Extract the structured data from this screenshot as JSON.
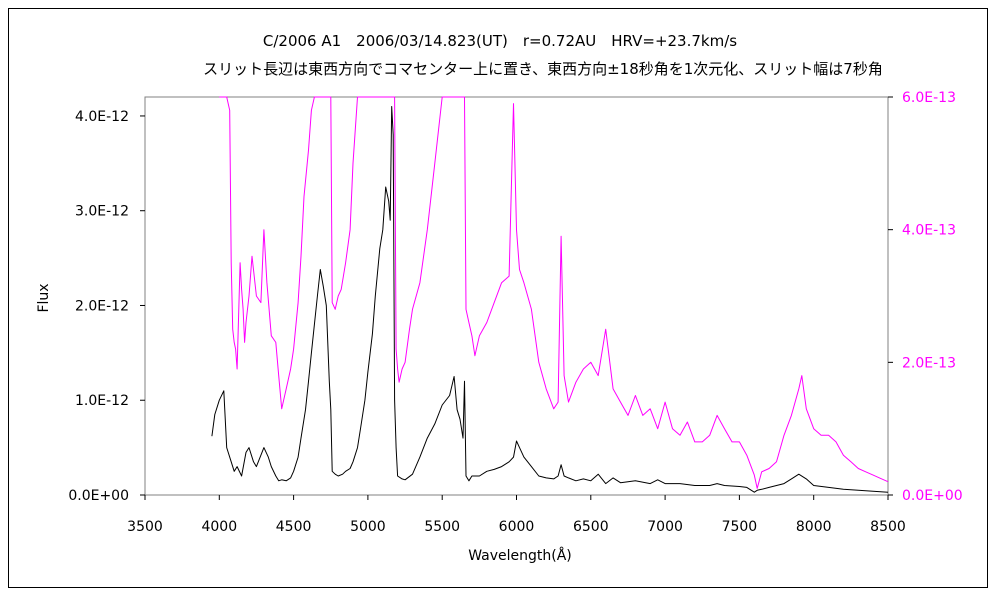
{
  "chart_data": {
    "type": "line",
    "title": "C/2006 A1　2006/03/14.823(UT)　r=0.72AU　HRV=+23.7km/s",
    "subtitle": "スリット長辺は東西方向でコマセンター上に置き、東西方向±18秒角を1次元化、スリット幅は7秒角",
    "xlabel": "Wavelength(Å)",
    "ylabel": "Flux",
    "xlim": [
      3500,
      8500
    ],
    "ylim": [
      0,
      4.2e-12
    ],
    "y2lim": [
      0,
      6e-13
    ],
    "x_ticks": [
      "3500",
      "4000",
      "4500",
      "5000",
      "5500",
      "6000",
      "6500",
      "7000",
      "7500",
      "8000",
      "8500"
    ],
    "y_ticks": [
      "0.0E+00",
      "1.0E-12",
      "2.0E-12",
      "3.0E-12",
      "4.0E-12"
    ],
    "y2_ticks": [
      "0.0E+00",
      "2.0E-13",
      "4.0E-13",
      "6.0E-13"
    ],
    "grid": false,
    "colors": {
      "primary": "#000000",
      "secondary": "#ff00ff"
    },
    "series": [
      {
        "axis": "left",
        "x": [
          3950,
          3970,
          4000,
          4030,
          4050,
          4080,
          4100,
          4120,
          4150,
          4180,
          4200,
          4230,
          4250,
          4280,
          4300,
          4330,
          4350,
          4380,
          4400,
          4420,
          4450,
          4480,
          4500,
          4530,
          4550,
          4580,
          4600,
          4620,
          4640,
          4660,
          4680,
          4700,
          4720,
          4740,
          4750,
          4760,
          4780,
          4800,
          4830,
          4850,
          4880,
          4900,
          4930,
          4950,
          4980,
          5000,
          5030,
          5050,
          5080,
          5100,
          5120,
          5140,
          5150,
          5160,
          5170,
          5180,
          5190,
          5200,
          5230,
          5250,
          5300,
          5350,
          5400,
          5450,
          5500,
          5550,
          5580,
          5600,
          5620,
          5640,
          5650,
          5660,
          5680,
          5700,
          5750,
          5800,
          5850,
          5900,
          5950,
          5980,
          6000,
          6020,
          6050,
          6100,
          6150,
          6200,
          6250,
          6280,
          6300,
          6320,
          6350,
          6400,
          6450,
          6500,
          6550,
          6600,
          6650,
          6700,
          6800,
          6900,
          6950,
          7000,
          7100,
          7200,
          7300,
          7350,
          7400,
          7500,
          7550,
          7600,
          7620,
          7650,
          7700,
          7800,
          7850,
          7900,
          7950,
          8000,
          8100,
          8200,
          8300,
          8400,
          8500
        ],
        "y": [
          6.2e-13,
          8.5e-13,
          1e-12,
          1.1e-12,
          5e-13,
          3.5e-13,
          2.5e-13,
          3e-13,
          2e-13,
          4.5e-13,
          5e-13,
          3.5e-13,
          3e-13,
          4.2e-13,
          5e-13,
          4e-13,
          3e-13,
          2e-13,
          1.5e-13,
          1.6e-13,
          1.5e-13,
          1.8e-13,
          2.5e-13,
          4e-13,
          6e-13,
          9e-13,
          1.2e-12,
          1.5e-12,
          1.8e-12,
          2.1e-12,
          2.38e-12,
          2.2e-12,
          2e-12,
          1.2e-12,
          9e-13,
          2.5e-13,
          2.2e-13,
          2e-13,
          2.2e-13,
          2.5e-13,
          2.8e-13,
          3.5e-13,
          5e-13,
          7e-13,
          1e-12,
          1.3e-12,
          1.7e-12,
          2.1e-12,
          2.6e-12,
          2.8e-12,
          3.25e-12,
          3.1e-12,
          2.9e-12,
          4.1e-12,
          3.8e-12,
          1e-12,
          5e-13,
          2e-13,
          1.7e-13,
          1.6e-13,
          2.2e-13,
          4e-13,
          6e-13,
          7.5e-13,
          9.5e-13,
          1.05e-12,
          1.25e-12,
          9e-13,
          8e-13,
          6e-13,
          1.2e-12,
          2e-13,
          1.5e-13,
          2e-13,
          2e-13,
          2.5e-13,
          2.7e-13,
          3e-13,
          3.5e-13,
          4e-13,
          5.7e-13,
          5e-13,
          4e-13,
          3e-13,
          2e-13,
          1.8e-13,
          1.7e-13,
          2e-13,
          3.2e-13,
          2e-13,
          1.8e-13,
          1.5e-13,
          1.7e-13,
          1.5e-13,
          2.2e-13,
          1.2e-13,
          1.8e-13,
          1.3e-13,
          1.5e-13,
          1.2e-13,
          1.6e-13,
          1.2e-13,
          1.2e-13,
          1e-13,
          1e-13,
          1.2e-13,
          1e-13,
          9e-14,
          8e-14,
          3e-14,
          5e-14,
          6e-14,
          8e-14,
          1.2e-13,
          1.7e-13,
          2.2e-13,
          1.7e-13,
          1e-13,
          8e-14,
          6e-14,
          5e-14,
          4e-14,
          3e-14
        ]
      },
      {
        "axis": "right",
        "x": [
          4000,
          4030,
          4050,
          4070,
          4080,
          4090,
          4100,
          4110,
          4120,
          4130,
          4140,
          4150,
          4160,
          4170,
          4180,
          4200,
          4220,
          4250,
          4280,
          4300,
          4320,
          4350,
          4380,
          4400,
          4420,
          4450,
          4480,
          4500,
          4530,
          4550,
          4570,
          4600,
          4620,
          4640,
          4650,
          4700,
          4740,
          4745,
          4750,
          4760,
          4780,
          4800,
          4820,
          4850,
          4880,
          4900,
          4930,
          4950,
          4980,
          5000,
          5050,
          5100,
          5150,
          5160,
          5170,
          5180,
          5190,
          5200,
          5210,
          5230,
          5250,
          5280,
          5300,
          5350,
          5400,
          5450,
          5500,
          5550,
          5600,
          5630,
          5640,
          5650,
          5660,
          5680,
          5700,
          5720,
          5750,
          5800,
          5850,
          5900,
          5950,
          5980,
          6000,
          6020,
          6050,
          6100,
          6150,
          6200,
          6250,
          6280,
          6300,
          6320,
          6350,
          6400,
          6450,
          6500,
          6550,
          6600,
          6650,
          6700,
          6750,
          6800,
          6850,
          6900,
          6950,
          7000,
          7050,
          7100,
          7150,
          7200,
          7250,
          7300,
          7350,
          7400,
          7450,
          7500,
          7550,
          7600,
          7620,
          7650,
          7700,
          7750,
          7800,
          7850,
          7900,
          7920,
          7950,
          8000,
          8050,
          8100,
          8150,
          8200,
          8250,
          8300,
          8350,
          8400,
          8450,
          8500
        ],
        "y": [
          6e-13,
          6e-13,
          6e-13,
          5.8e-13,
          3.5e-13,
          2.5e-13,
          2.3e-13,
          2.2e-13,
          1.9e-13,
          2.7e-13,
          3.5e-13,
          3.1e-13,
          2.8e-13,
          2.3e-13,
          2.6e-13,
          3e-13,
          3.6e-13,
          3e-13,
          2.9e-13,
          4e-13,
          3.2e-13,
          2.4e-13,
          2.3e-13,
          1.8e-13,
          1.3e-13,
          1.6e-13,
          1.9e-13,
          2.2e-13,
          2.9e-13,
          3.6e-13,
          4.5e-13,
          5.2e-13,
          5.8e-13,
          6e-13,
          6e-13,
          6e-13,
          6e-13,
          6e-13,
          6e-13,
          2.9e-13,
          2.8e-13,
          3e-13,
          3.1e-13,
          3.5e-13,
          4e-13,
          5e-13,
          6e-13,
          6e-13,
          6e-13,
          6e-13,
          6e-13,
          6e-13,
          6e-13,
          6e-13,
          6e-13,
          6e-13,
          2.2e-13,
          1.9e-13,
          1.7e-13,
          1.9e-13,
          2e-13,
          2.5e-13,
          2.8e-13,
          3.2e-13,
          4e-13,
          5e-13,
          6e-13,
          6e-13,
          6e-13,
          6e-13,
          6e-13,
          6e-13,
          2.8e-13,
          2.6e-13,
          2.4e-13,
          2.1e-13,
          2.4e-13,
          2.6e-13,
          2.9e-13,
          3.2e-13,
          3.3e-13,
          5.9e-13,
          4e-13,
          3.4e-13,
          3.2e-13,
          2.8e-13,
          2e-13,
          1.6e-13,
          1.3e-13,
          1.4e-13,
          3.9e-13,
          1.8e-13,
          1.4e-13,
          1.7e-13,
          1.9e-13,
          2e-13,
          1.8e-13,
          2.5e-13,
          1.6e-13,
          1.4e-13,
          1.2e-13,
          1.5e-13,
          1.2e-13,
          1.3e-13,
          1e-13,
          1.4e-13,
          1e-13,
          9e-14,
          1.1e-13,
          8e-14,
          8e-14,
          9e-14,
          1.2e-13,
          1e-13,
          8e-14,
          8e-14,
          6e-14,
          3e-14,
          1e-14,
          3.5e-14,
          4e-14,
          5e-14,
          9e-14,
          1.2e-13,
          1.6e-13,
          1.8e-13,
          1.3e-13,
          1e-13,
          9e-14,
          9e-14,
          8e-14,
          6e-14,
          5e-14,
          4e-14,
          3.5e-14,
          3e-14,
          2.5e-14,
          2e-14
        ]
      }
    ]
  }
}
